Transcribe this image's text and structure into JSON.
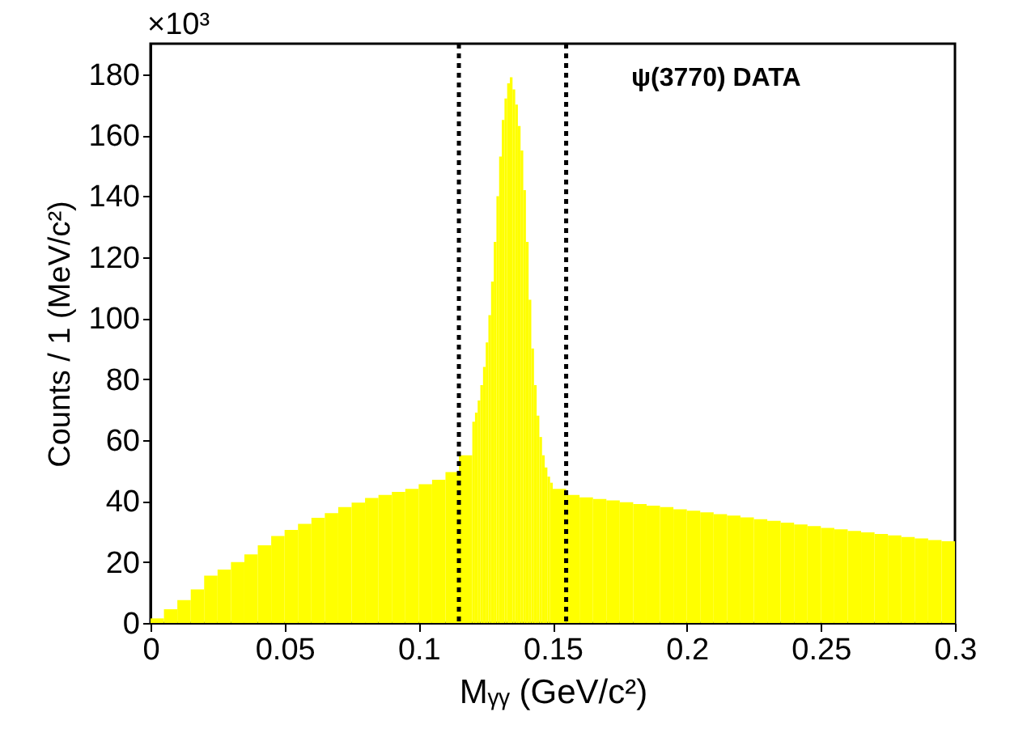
{
  "chart_data": {
    "type": "histogram",
    "xlabel": "Mᵧᵧ (GeV/c²)",
    "ylabel": "Counts / 1 (MeV/c²)",
    "color": "#ffff00",
    "bins": [
      0,
      0.005,
      0.01,
      0.015,
      0.02,
      0.025,
      0.03,
      0.035,
      0.04,
      0.045,
      0.05,
      0.055,
      0.06,
      0.065,
      0.07,
      0.075,
      0.08,
      0.085,
      0.09,
      0.095,
      0.1,
      0.105,
      0.11,
      0.115,
      0.12,
      0.121,
      0.122,
      0.123,
      0.124,
      0.125,
      0.126,
      0.127,
      0.128,
      0.129,
      0.13,
      0.131,
      0.132,
      0.133,
      0.134,
      0.135,
      0.136,
      0.137,
      0.138,
      0.139,
      0.14,
      0.141,
      0.142,
      0.143,
      0.144,
      0.145,
      0.146,
      0.147,
      0.148,
      0.149,
      0.15,
      0.155,
      0.16,
      0.165,
      0.17,
      0.175,
      0.18,
      0.185,
      0.19,
      0.195,
      0.2,
      0.205,
      0.21,
      0.215,
      0.22,
      0.225,
      0.23,
      0.235,
      0.24,
      0.245,
      0.25,
      0.255,
      0.26,
      0.265,
      0.27,
      0.275,
      0.28,
      0.285,
      0.29,
      0.295,
      0.3
    ],
    "values": [
      1.5,
      4.5,
      7.5,
      11,
      15.5,
      17.5,
      20,
      22.5,
      25.5,
      28.5,
      30.5,
      32.5,
      34.5,
      36,
      38,
      39.5,
      41,
      42,
      43,
      44,
      45.5,
      47,
      49.5,
      55,
      66,
      69,
      73,
      78,
      84,
      92,
      101,
      112,
      125,
      140,
      153,
      165,
      172,
      177,
      179,
      175,
      170,
      163,
      155,
      142,
      125,
      106,
      90,
      78,
      68,
      61,
      55,
      51,
      48,
      46,
      44,
      42,
      41.2,
      40.7,
      40.2,
      39.6,
      39,
      38.5,
      38,
      37.3,
      36.8,
      36.3,
      35.7,
      35.2,
      34.6,
      34,
      33.5,
      32.9,
      32.3,
      31.8,
      31.2,
      30.7,
      30.2,
      29.7,
      29.2,
      28.7,
      28.2,
      27.7,
      27.2,
      26.8
    ],
    "xlim": [
      0,
      0.3
    ],
    "xticks": [
      0,
      0.05,
      0.1,
      0.15,
      0.2,
      0.25,
      0.3
    ],
    "ylim": [
      0,
      190
    ],
    "yticks": [
      0,
      20,
      40,
      60,
      80,
      100,
      120,
      140,
      160,
      180
    ],
    "ref_lines": [
      {
        "axis": "x",
        "value": 0.115,
        "line_style": "dotted",
        "color": "#000000"
      },
      {
        "axis": "x",
        "value": 0.155,
        "line_style": "dotted",
        "color": "#000000"
      }
    ],
    "annotations": [
      "×10³",
      "ψ(3770) DATA"
    ]
  }
}
